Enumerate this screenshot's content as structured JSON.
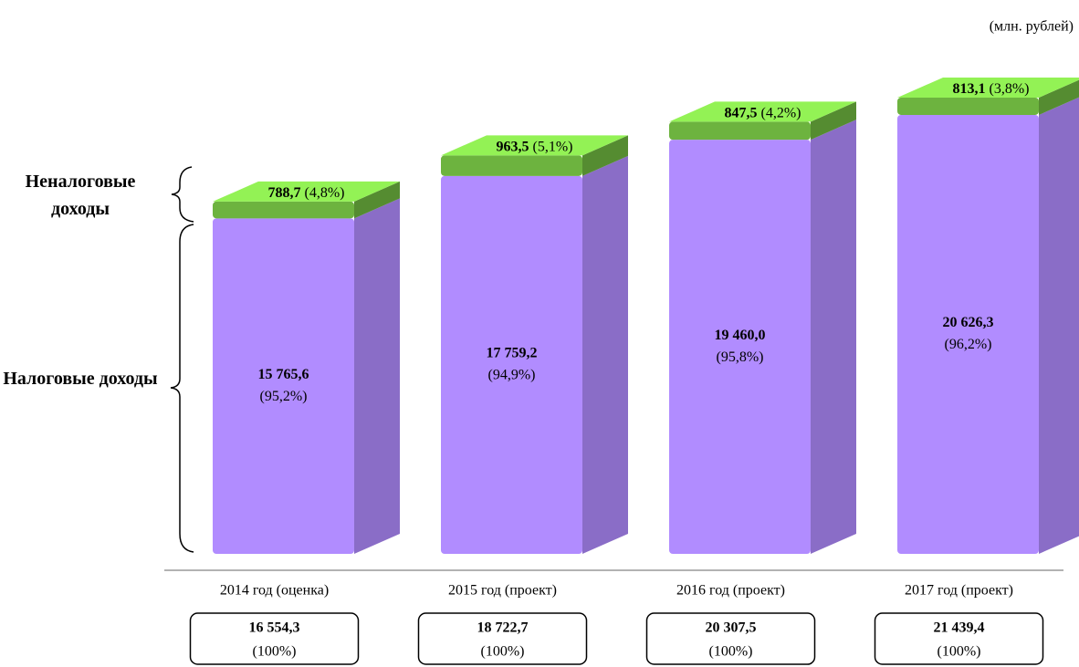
{
  "chart_data": {
    "type": "stacked_bar_3d",
    "unit": "(млн. рублей)",
    "categories": [
      "2014 год (оценка)",
      "2015 год (проект)",
      "2016 год (проект)",
      "2017 год (проект)"
    ],
    "series": [
      {
        "name": "Налоговые доходы",
        "color": "#b18cff",
        "values": [
          15765.6,
          17759.2,
          19460.0,
          20626.3
        ],
        "value_labels": [
          "15 765,6",
          "17 759,2",
          "19 460,0",
          "20 626,3"
        ],
        "shares": [
          95.2,
          94.9,
          95.8,
          96.2
        ],
        "share_labels": [
          "(95,2%)",
          "(94,9%)",
          "(95,8%)",
          "(96,2%)"
        ]
      },
      {
        "name": "Неналоговые доходы",
        "color": "#6db33f",
        "values": [
          788.7,
          963.5,
          847.5,
          813.1
        ],
        "value_labels": [
          "788,7",
          "963,5",
          "847,5",
          "813,1"
        ],
        "shares": [
          4.8,
          5.1,
          4.2,
          3.8
        ],
        "share_labels": [
          "(4,8%)",
          "(5,1%)",
          "(4,2%)",
          "(3,8%)"
        ]
      }
    ],
    "totals": [
      16554.3,
      18722.7,
      20307.5,
      21439.4
    ],
    "total_labels": [
      "16 554,3",
      "18 722,7",
      "20 307,5",
      "21 439,4"
    ],
    "total_shares": [
      100,
      100,
      100,
      100
    ],
    "total_share_labels": [
      "(100%)",
      "(100%)",
      "(100%)",
      "(100%)"
    ]
  }
}
